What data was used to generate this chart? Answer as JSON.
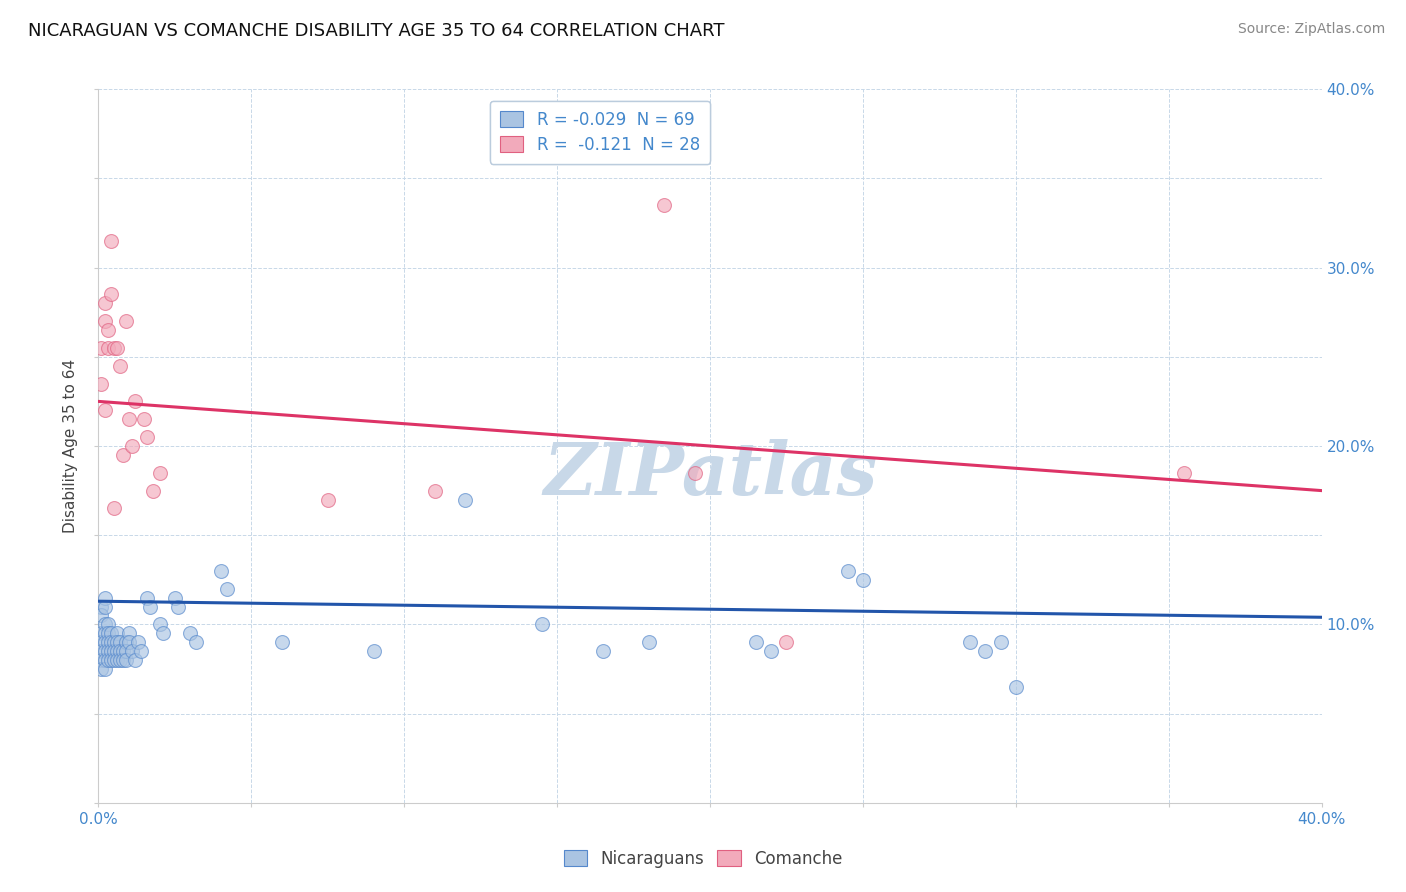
{
  "title": "NICARAGUAN VS COMANCHE DISABILITY AGE 35 TO 64 CORRELATION CHART",
  "source": "Source: ZipAtlas.com",
  "ylabel": "Disability Age 35 to 64",
  "xlim": [
    0.0,
    0.4
  ],
  "ylim": [
    0.0,
    0.4
  ],
  "blue_R": -0.029,
  "blue_N": 69,
  "pink_R": -0.121,
  "pink_N": 28,
  "blue_color": "#aac4e2",
  "pink_color": "#f2aabb",
  "blue_edge_color": "#5588cc",
  "pink_edge_color": "#e06080",
  "blue_line_color": "#2255aa",
  "pink_line_color": "#dd3366",
  "grid_color": "#c8d8e8",
  "background_color": "#ffffff",
  "watermark": "ZIPatlas",
  "watermark_color": "#c8d8e8",
  "blue_scatter_x": [
    0.001,
    0.001,
    0.001,
    0.001,
    0.001,
    0.001,
    0.001,
    0.002,
    0.002,
    0.002,
    0.002,
    0.002,
    0.002,
    0.002,
    0.002,
    0.003,
    0.003,
    0.003,
    0.003,
    0.003,
    0.004,
    0.004,
    0.004,
    0.004,
    0.005,
    0.005,
    0.005,
    0.006,
    0.006,
    0.006,
    0.006,
    0.007,
    0.007,
    0.007,
    0.008,
    0.008,
    0.009,
    0.009,
    0.009,
    0.01,
    0.01,
    0.011,
    0.012,
    0.013,
    0.014,
    0.016,
    0.017,
    0.02,
    0.021,
    0.025,
    0.026,
    0.03,
    0.032,
    0.04,
    0.042,
    0.06,
    0.09,
    0.12,
    0.145,
    0.165,
    0.18,
    0.215,
    0.22,
    0.245,
    0.25,
    0.285,
    0.29,
    0.295,
    0.3
  ],
  "blue_scatter_y": [
    0.11,
    0.105,
    0.095,
    0.09,
    0.085,
    0.08,
    0.075,
    0.115,
    0.11,
    0.1,
    0.095,
    0.09,
    0.085,
    0.08,
    0.075,
    0.1,
    0.095,
    0.09,
    0.085,
    0.08,
    0.095,
    0.09,
    0.085,
    0.08,
    0.09,
    0.085,
    0.08,
    0.095,
    0.09,
    0.085,
    0.08,
    0.09,
    0.085,
    0.08,
    0.085,
    0.08,
    0.09,
    0.085,
    0.08,
    0.095,
    0.09,
    0.085,
    0.08,
    0.09,
    0.085,
    0.115,
    0.11,
    0.1,
    0.095,
    0.115,
    0.11,
    0.095,
    0.09,
    0.13,
    0.12,
    0.09,
    0.085,
    0.17,
    0.1,
    0.085,
    0.09,
    0.09,
    0.085,
    0.13,
    0.125,
    0.09,
    0.085,
    0.09,
    0.065
  ],
  "pink_scatter_x": [
    0.001,
    0.001,
    0.002,
    0.002,
    0.002,
    0.003,
    0.003,
    0.004,
    0.004,
    0.005,
    0.005,
    0.006,
    0.007,
    0.008,
    0.009,
    0.01,
    0.011,
    0.012,
    0.015,
    0.016,
    0.018,
    0.02,
    0.075,
    0.11,
    0.185,
    0.195,
    0.225,
    0.355
  ],
  "pink_scatter_y": [
    0.235,
    0.255,
    0.22,
    0.27,
    0.28,
    0.265,
    0.255,
    0.285,
    0.315,
    0.165,
    0.255,
    0.255,
    0.245,
    0.195,
    0.27,
    0.215,
    0.2,
    0.225,
    0.215,
    0.205,
    0.175,
    0.185,
    0.17,
    0.175,
    0.335,
    0.185,
    0.09,
    0.185
  ],
  "blue_line_x": [
    0.0,
    0.4
  ],
  "blue_line_y": [
    0.113,
    0.104
  ],
  "pink_line_x": [
    0.0,
    0.4
  ],
  "pink_line_y": [
    0.225,
    0.175
  ],
  "legend_blue_label": "R = -0.029  N = 69",
  "legend_pink_label": "R =  -0.121  N = 28",
  "legend_x_label": "Nicaraguans",
  "legend_y_label": "Comanche",
  "scatter_size": 100,
  "scatter_alpha": 0.65,
  "line_width": 2.2
}
